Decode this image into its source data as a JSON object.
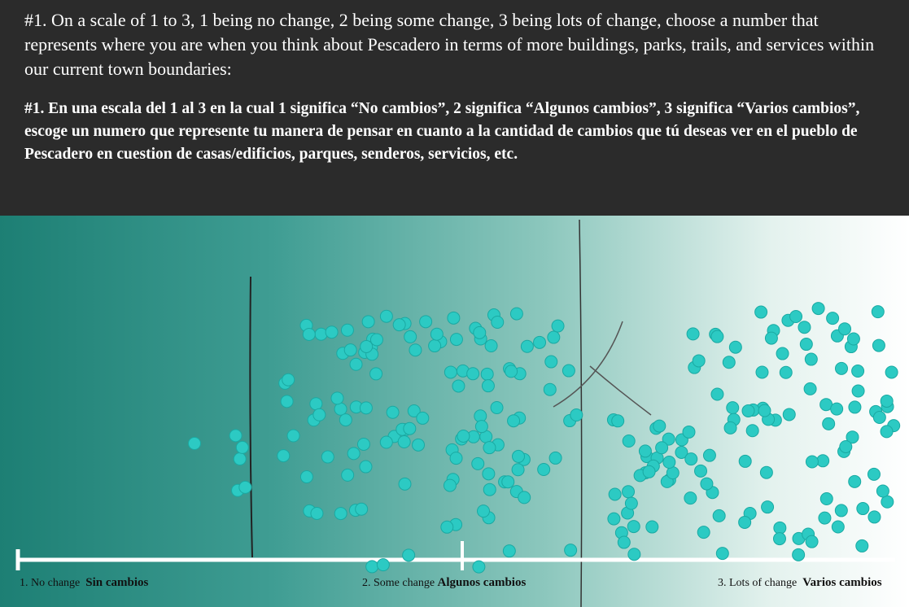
{
  "header": {
    "question_en": "#1. On a scale of 1 to 3, 1 being no change, 2 being some change, 3 being lots of change, choose a number that represents where you are when you think about Pescadero in terms of more buildings, parks, trails, and services within our current town boundaries:",
    "question_es": "#1. En una escala del 1 al 3 en la cual 1 significa “No cambios”, 2 significa “Algunos cambios”, 3 significa “Varios cambios”, escoge un numero que represente tu manera de pensar en cuanto a la cantidad de cambios que tú deseas ver en el pueblo de Pescadero en cuestion de casas/edificios, parques, senderos, servicios, etc."
  },
  "scale": {
    "labels": [
      {
        "en": "1. No change",
        "es": "Sin cambios"
      },
      {
        "en": "2. Some change",
        "es": "Algunos cambios"
      },
      {
        "en": "3. Lots of change",
        "es": "Varios cambios"
      }
    ]
  }
}
